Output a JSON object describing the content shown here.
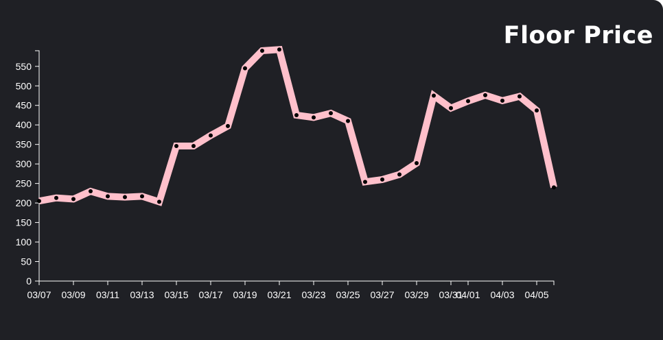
{
  "chart_data": {
    "type": "line",
    "title": "Floor Price",
    "xlabel": "",
    "ylabel": "",
    "ylim": [
      0,
      590
    ],
    "grid": false,
    "line_color": "#ffc0cb",
    "point_color": "#000000",
    "background_color": "#1f2025",
    "yticks": [
      0,
      50,
      100,
      150,
      200,
      250,
      300,
      350,
      400,
      450,
      500,
      550
    ],
    "xtick_labels": [
      "03/07",
      "03/09",
      "03/11",
      "03/13",
      "03/15",
      "03/17",
      "03/19",
      "03/21",
      "03/23",
      "03/25",
      "03/27",
      "03/29",
      "03/31",
      "04/01",
      "04/03",
      "04/05"
    ],
    "x": [
      "03/07",
      "03/08",
      "03/09",
      "03/10",
      "03/11",
      "03/12",
      "03/13",
      "03/14",
      "03/15",
      "03/16",
      "03/17",
      "03/18",
      "03/19",
      "03/20",
      "03/21",
      "03/22",
      "03/23",
      "03/24",
      "03/25",
      "03/26",
      "03/27",
      "03/28",
      "03/29",
      "03/30",
      "03/31",
      "04/01",
      "04/02",
      "04/03",
      "04/04",
      "04/05",
      "04/06"
    ],
    "values": [
      205,
      213,
      210,
      230,
      217,
      215,
      217,
      203,
      346,
      346,
      373,
      397,
      545,
      590,
      593,
      425,
      419,
      430,
      410,
      254,
      260,
      273,
      302,
      475,
      443,
      461,
      476,
      462,
      473,
      437,
      240
    ]
  }
}
